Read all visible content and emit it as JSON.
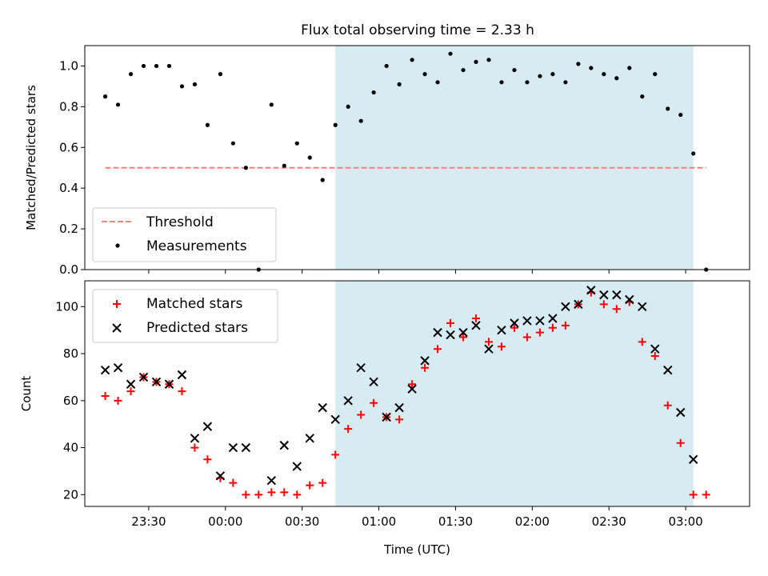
{
  "title": "Flux total observing time = 2.33 h",
  "colors": {
    "shade": "#add8e6",
    "threshold": "#ff7f7f",
    "matched": "#ff0000",
    "predicted": "#000000",
    "measurements": "#000000"
  },
  "chart_data": [
    {
      "type": "scatter",
      "panel": "top",
      "ylabel": "Matched/Predicted stars",
      "ylim": [
        0,
        1.1
      ],
      "yticks": [
        0.0,
        0.2,
        0.4,
        0.6,
        0.8,
        1.0
      ],
      "xlim_minutes": [
        -55,
        205
      ],
      "x_tick_minutes": [
        -30,
        0,
        30,
        60,
        90,
        120,
        150,
        180
      ],
      "shaded_range": [
        "00:43",
        "03:03"
      ],
      "legend": {
        "position": "lower-left",
        "entries": [
          "Threshold",
          "Measurements"
        ]
      },
      "threshold": {
        "name": "Threshold",
        "y": 0.5,
        "x_range": [
          "23:13",
          "03:08"
        ],
        "style": "dashed"
      },
      "measurements": {
        "name": "Measurements",
        "x": [
          "23:13",
          "23:18",
          "23:23",
          "23:28",
          "23:33",
          "23:38",
          "23:43",
          "23:48",
          "23:53",
          "23:58",
          "00:03",
          "00:08",
          "00:13",
          "00:18",
          "00:23",
          "00:28",
          "00:33",
          "00:38",
          "00:43",
          "00:48",
          "00:53",
          "00:58",
          "01:03",
          "01:08",
          "01:13",
          "01:18",
          "01:23",
          "01:28",
          "01:33",
          "01:38",
          "01:43",
          "01:48",
          "01:53",
          "01:58",
          "02:03",
          "02:08",
          "02:13",
          "02:18",
          "02:23",
          "02:28",
          "02:33",
          "02:38",
          "02:43",
          "02:48",
          "02:53",
          "02:58",
          "03:03",
          "03:08"
        ],
        "y": [
          0.85,
          0.81,
          0.96,
          1.0,
          1.0,
          1.0,
          0.9,
          0.91,
          0.71,
          0.96,
          0.62,
          0.5,
          0.0,
          0.81,
          0.51,
          0.62,
          0.55,
          0.44,
          0.71,
          0.8,
          0.73,
          0.87,
          1.0,
          0.91,
          1.03,
          0.96,
          0.92,
          1.06,
          0.98,
          1.02,
          1.03,
          0.92,
          0.98,
          0.92,
          0.95,
          0.96,
          0.92,
          1.01,
          0.99,
          0.96,
          0.94,
          0.99,
          0.85,
          0.96,
          0.79,
          0.76,
          0.57,
          0.0
        ]
      }
    },
    {
      "type": "scatter",
      "panel": "bottom",
      "ylabel": "Count",
      "xlabel": "Time (UTC)",
      "ylim": [
        15,
        111
      ],
      "yticks": [
        20,
        40,
        60,
        80,
        100
      ],
      "xlim_minutes": [
        -55,
        205
      ],
      "x_tick_minutes": [
        -30,
        0,
        30,
        60,
        90,
        120,
        150,
        180
      ],
      "x_tick_labels": [
        "23:30",
        "00:00",
        "00:30",
        "01:00",
        "01:30",
        "02:00",
        "02:30",
        "03:00"
      ],
      "shaded_range": [
        "00:43",
        "03:03"
      ],
      "legend": {
        "position": "upper-left",
        "entries": [
          "Matched stars",
          "Predicted stars"
        ]
      },
      "series": [
        {
          "name": "Matched stars",
          "marker": "+",
          "x": [
            "23:13",
            "23:18",
            "23:23",
            "23:28",
            "23:33",
            "23:38",
            "23:43",
            "23:48",
            "23:53",
            "23:58",
            "00:03",
            "00:08",
            "00:13",
            "00:18",
            "00:23",
            "00:28",
            "00:33",
            "00:38",
            "00:43",
            "00:48",
            "00:53",
            "00:58",
            "01:03",
            "01:08",
            "01:13",
            "01:18",
            "01:23",
            "01:28",
            "01:33",
            "01:38",
            "01:43",
            "01:48",
            "01:53",
            "01:58",
            "02:03",
            "02:08",
            "02:13",
            "02:18",
            "02:23",
            "02:28",
            "02:33",
            "02:38",
            "02:43",
            "02:48",
            "02:53",
            "02:58",
            "03:03",
            "03:08"
          ],
          "values": [
            62,
            60,
            64,
            70,
            68,
            67,
            64,
            40,
            35,
            27,
            25,
            20,
            20,
            21,
            21,
            20,
            24,
            25,
            37,
            48,
            54,
            59,
            53,
            52,
            67,
            74,
            82,
            93,
            87,
            95,
            85,
            83,
            91,
            87,
            89,
            91,
            92,
            101,
            106,
            101,
            99,
            102,
            85,
            79,
            58,
            42,
            20,
            20
          ]
        },
        {
          "name": "Predicted stars",
          "marker": "x",
          "x": [
            "23:13",
            "23:18",
            "23:23",
            "23:28",
            "23:33",
            "23:38",
            "23:43",
            "23:48",
            "23:53",
            "23:58",
            "00:03",
            "00:08",
            "00:18",
            "00:23",
            "00:28",
            "00:33",
            "00:38",
            "00:43",
            "00:48",
            "00:53",
            "00:58",
            "01:03",
            "01:08",
            "01:13",
            "01:18",
            "01:23",
            "01:28",
            "01:33",
            "01:38",
            "01:43",
            "01:48",
            "01:53",
            "01:58",
            "02:03",
            "02:08",
            "02:13",
            "02:18",
            "02:23",
            "02:28",
            "02:33",
            "02:38",
            "02:43",
            "02:48",
            "02:53",
            "02:58",
            "03:03"
          ],
          "values": [
            73,
            74,
            67,
            70,
            68,
            67,
            71,
            44,
            49,
            28,
            40,
            40,
            26,
            41,
            32,
            44,
            57,
            52,
            60,
            74,
            68,
            53,
            57,
            65,
            77,
            89,
            88,
            89,
            92,
            82,
            90,
            93,
            94,
            94,
            95,
            100,
            101,
            107,
            105,
            105,
            103,
            100,
            82,
            73,
            55,
            35
          ]
        }
      ]
    }
  ]
}
